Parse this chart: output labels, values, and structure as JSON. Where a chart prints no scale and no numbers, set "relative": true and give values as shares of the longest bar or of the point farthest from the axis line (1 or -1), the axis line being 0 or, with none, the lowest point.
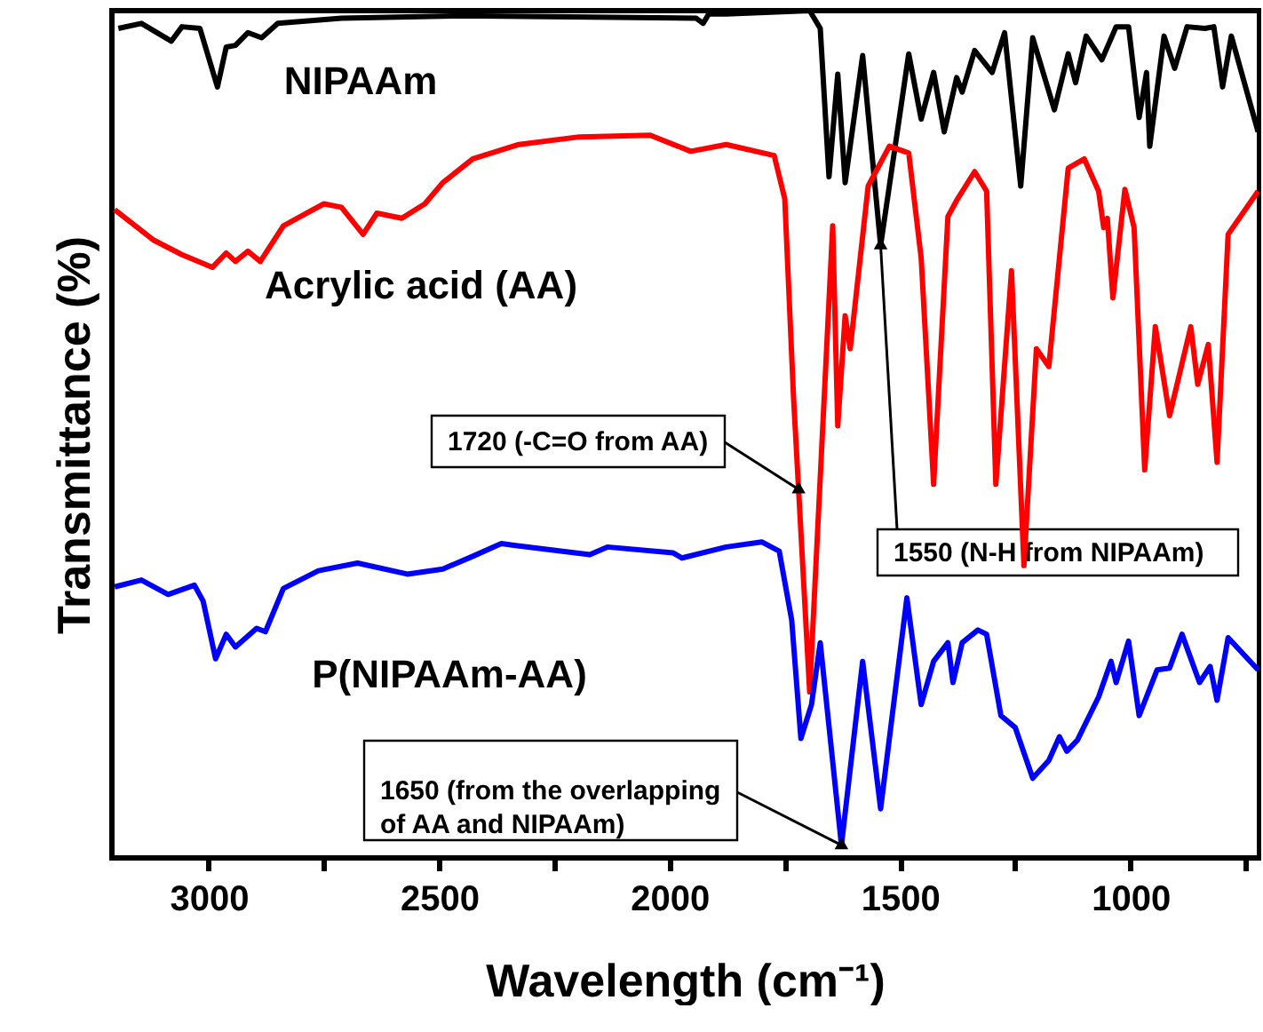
{
  "chart_data": {
    "type": "line",
    "relative": true,
    "xlabel": "Wavelength (cm⁻¹)",
    "ylabel": "Transmittance (%)",
    "xlim": [
      3210,
      720
    ],
    "xticks": [
      3000,
      {
        "value": 2750,
        "label": null
      },
      2500,
      {
        "value": 2250,
        "label": null
      },
      2000,
      {
        "value": 1750,
        "label": null
      },
      1500,
      {
        "value": 1250,
        "label": null
      },
      1000,
      {
        "value": 750,
        "label": null
      }
    ],
    "grid": false,
    "legend": false,
    "marker": "none",
    "line_style": "solid",
    "series": [
      {
        "name": "NIPAAm",
        "color": "#000000",
        "x": [
          3196,
          3146,
          3081,
          3058,
          3019,
          2981,
          2962,
          2942,
          2915,
          2885,
          2850,
          2712,
          2454,
          1942,
          1927,
          1915,
          1877,
          1696,
          1673,
          1654,
          1635,
          1619,
          1581,
          1542,
          1481,
          1454,
          1427,
          1404,
          1377,
          1365,
          1338,
          1300,
          1273,
          1238,
          1212,
          1165,
          1135,
          1119,
          1096,
          1062,
          1031,
          1004,
          981,
          965,
          958,
          927,
          904,
          877,
          838,
          819,
          800,
          781,
          723
        ],
        "values": [
          0.979,
          0.985,
          0.964,
          0.981,
          0.979,
          0.91,
          0.957,
          0.959,
          0.974,
          0.968,
          0.985,
          0.991,
          0.994,
          0.991,
          0.985,
          0.996,
          0.996,
          1.0,
          0.979,
          0.804,
          0.925,
          0.797,
          0.947,
          0.723,
          0.949,
          0.872,
          0.927,
          0.857,
          0.921,
          0.904,
          0.953,
          0.927,
          0.974,
          0.793,
          0.968,
          0.883,
          0.949,
          0.915,
          0.97,
          0.942,
          0.981,
          0.981,
          0.874,
          0.927,
          0.84,
          0.97,
          0.932,
          0.981,
          0.979,
          0.981,
          0.91,
          0.97,
          0.857
        ]
      },
      {
        "name": "Acrylic acid (AA)",
        "color": "#ff0000",
        "x": [
          3204,
          3119,
          3058,
          2992,
          2962,
          2942,
          2915,
          2888,
          2838,
          2788,
          2750,
          2712,
          2665,
          2635,
          2581,
          2531,
          2492,
          2427,
          2327,
          2196,
          2042,
          1954,
          1877,
          1773,
          1750,
          1731,
          1696,
          1646,
          1635,
          1619,
          1608,
          1569,
          1523,
          1481,
          1454,
          1427,
          1396,
          1377,
          1338,
          1312,
          1292,
          1258,
          1231,
          1204,
          1177,
          1135,
          1100,
          1069,
          1058,
          1050,
          1038,
          1012,
          992,
          969,
          946,
          915,
          869,
          854,
          831,
          812,
          788,
          723
        ],
        "values": [
          0.765,
          0.729,
          0.712,
          0.697,
          0.714,
          0.704,
          0.716,
          0.704,
          0.746,
          0.761,
          0.772,
          0.768,
          0.736,
          0.761,
          0.755,
          0.772,
          0.797,
          0.825,
          0.842,
          0.851,
          0.853,
          0.834,
          0.842,
          0.829,
          0.778,
          0.544,
          0.196,
          0.746,
          0.51,
          0.64,
          0.601,
          0.793,
          0.84,
          0.832,
          0.708,
          0.441,
          0.757,
          0.776,
          0.81,
          0.787,
          0.441,
          0.693,
          0.345,
          0.601,
          0.58,
          0.814,
          0.825,
          0.787,
          0.744,
          0.755,
          0.661,
          0.789,
          0.744,
          0.458,
          0.627,
          0.522,
          0.627,
          0.559,
          0.606,
          0.467,
          0.736,
          0.787
        ]
      },
      {
        "name": "P(NIPAAm-AA)",
        "color": "#0000ff",
        "x": [
          3204,
          3146,
          3088,
          3031,
          3012,
          2985,
          2962,
          2942,
          2896,
          2877,
          2838,
          2762,
          2677,
          2569,
          2492,
          2427,
          2365,
          2338,
          2173,
          2135,
          1992,
          1973,
          1877,
          1800,
          1762,
          1735,
          1715,
          1692,
          1673,
          1627,
          1581,
          1542,
          1485,
          1454,
          1427,
          1396,
          1385,
          1365,
          1331,
          1312,
          1281,
          1250,
          1212,
          1177,
          1154,
          1138,
          1115,
          1069,
          1042,
          1031,
          1004,
          981,
          942,
          915,
          888,
          850,
          827,
          812,
          788,
          723
        ],
        "values": [
          0.32,
          0.328,
          0.311,
          0.322,
          0.303,
          0.235,
          0.264,
          0.249,
          0.271,
          0.267,
          0.318,
          0.339,
          0.348,
          0.335,
          0.341,
          0.356,
          0.371,
          0.369,
          0.358,
          0.367,
          0.36,
          0.354,
          0.367,
          0.373,
          0.362,
          0.281,
          0.141,
          0.181,
          0.254,
          0.015,
          0.232,
          0.058,
          0.307,
          0.181,
          0.232,
          0.254,
          0.207,
          0.254,
          0.269,
          0.264,
          0.168,
          0.154,
          0.094,
          0.115,
          0.143,
          0.126,
          0.139,
          0.19,
          0.232,
          0.207,
          0.256,
          0.168,
          0.222,
          0.224,
          0.264,
          0.207,
          0.226,
          0.186,
          0.26,
          0.222
        ]
      }
    ],
    "annotations": [
      {
        "text": "1720 (-C=O from AA)",
        "x": 1720,
        "y": 0.435
      },
      {
        "text": "1550 (N-H from NIPAAm)",
        "x": 1542,
        "y": 0.723
      },
      {
        "text": "1650 (from the overlapping\n of AA and NIPAAm)",
        "x": 1627,
        "y": 0.015
      }
    ]
  }
}
